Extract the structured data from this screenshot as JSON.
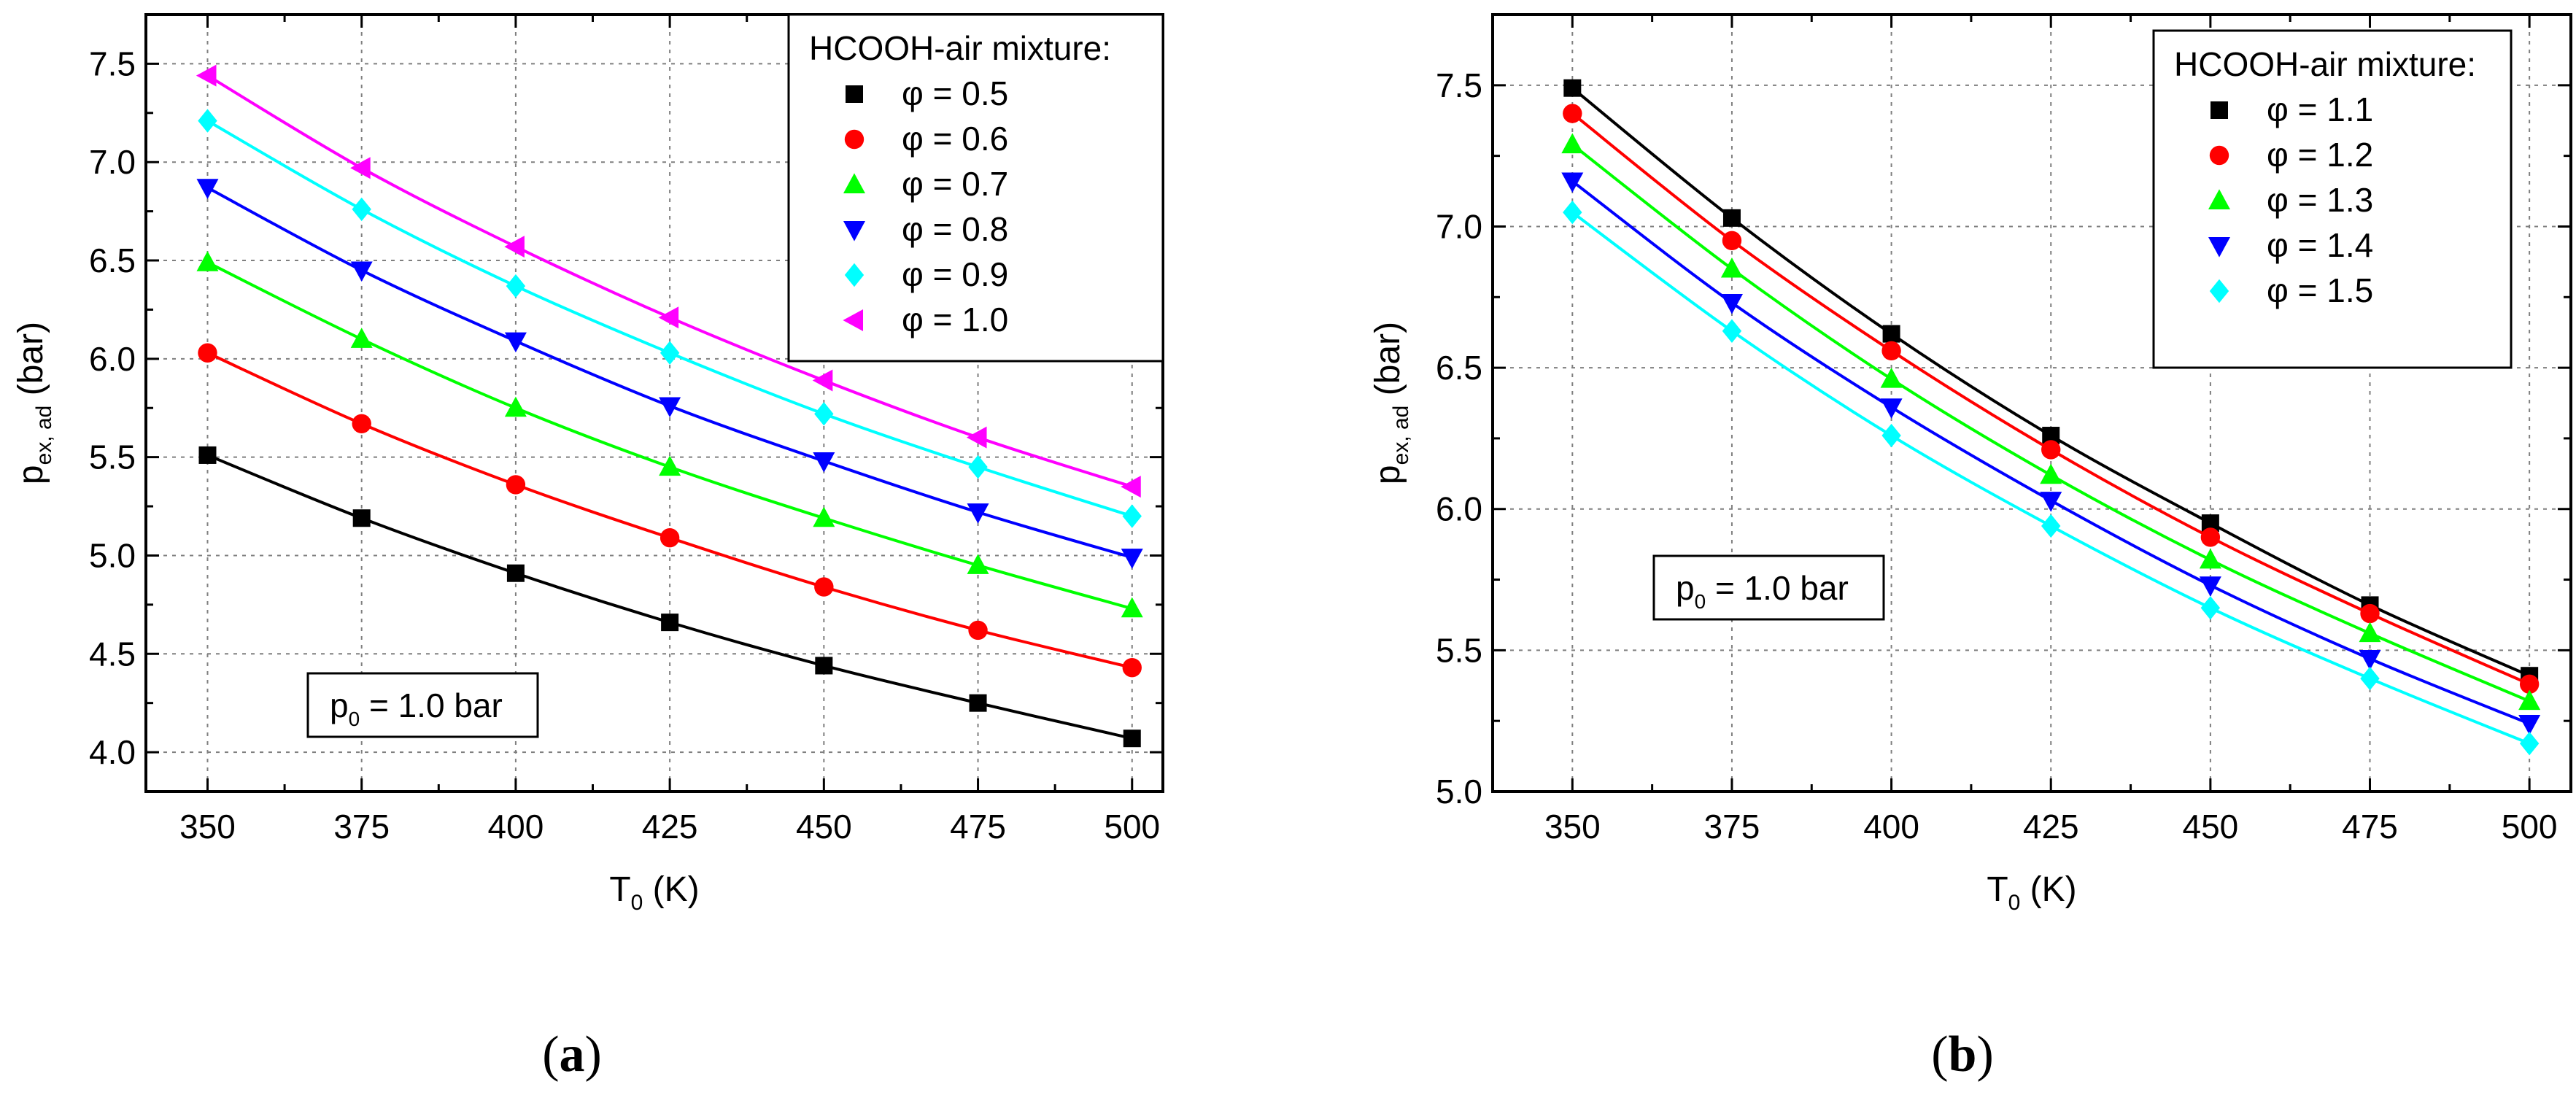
{
  "chart_data": [
    {
      "type": "line",
      "panel_label": "a",
      "xlabel": "T",
      "xlabel_sub": "0",
      "xlabel_unit": " (K)",
      "ylabel": "p",
      "ylabel_sub": "ex, ad",
      "ylabel_unit": " (bar)",
      "xlim": [
        340,
        505
      ],
      "ylim": [
        3.8,
        7.75
      ],
      "xticks": [
        350,
        375,
        400,
        425,
        450,
        475,
        500
      ],
      "xtick_labels": [
        "350",
        "375",
        "400",
        "425",
        "450",
        "475",
        "500"
      ],
      "yticks": [
        4.0,
        4.5,
        5.0,
        5.5,
        6.0,
        6.5,
        7.0,
        7.5
      ],
      "ytick_labels": [
        "4.0",
        "4.5",
        "5.0",
        "5.5",
        "6.0",
        "6.5",
        "7.0",
        "7.5"
      ],
      "grid": true,
      "legend_title": "HCOOH-air mixture:",
      "legend_position": "top-right",
      "annotation": "p",
      "annotation_sub": "0",
      "annotation_rest": " = 1.0 bar",
      "annotation_position": "lower-left",
      "x": [
        350,
        375,
        400,
        425,
        450,
        475,
        500
      ],
      "series": [
        {
          "name": "φ = 0.5",
          "color": "#000000",
          "marker": "square",
          "values": [
            5.51,
            5.19,
            4.91,
            4.66,
            4.44,
            4.25,
            4.07
          ]
        },
        {
          "name": "φ = 0.6",
          "color": "#ff0000",
          "marker": "circle",
          "values": [
            6.03,
            5.67,
            5.36,
            5.09,
            4.84,
            4.62,
            4.43
          ]
        },
        {
          "name": "φ = 0.7",
          "color": "#00ff00",
          "marker": "triangle-up",
          "values": [
            6.49,
            6.1,
            5.75,
            5.45,
            5.19,
            4.95,
            4.73
          ]
        },
        {
          "name": "φ = 0.8",
          "color": "#0000ff",
          "marker": "triangle-down",
          "values": [
            6.87,
            6.45,
            6.09,
            5.76,
            5.48,
            5.22,
            4.99
          ]
        },
        {
          "name": "φ = 0.9",
          "color": "#00ffff",
          "marker": "diamond",
          "values": [
            7.21,
            6.76,
            6.37,
            6.03,
            5.72,
            5.45,
            5.2
          ]
        },
        {
          "name": "φ = 1.0",
          "color": "#ff00ff",
          "marker": "triangle-left",
          "values": [
            7.44,
            6.97,
            6.57,
            6.21,
            5.89,
            5.6,
            5.35
          ]
        }
      ]
    },
    {
      "type": "line",
      "panel_label": "b",
      "xlabel": "T",
      "xlabel_sub": "0",
      "xlabel_unit": " (K)",
      "ylabel": "p",
      "ylabel_sub": "ex, ad",
      "ylabel_unit": " (bar)",
      "xlim": [
        337.5,
        506.5
      ],
      "ylim": [
        5.0,
        7.75
      ],
      "xticks": [
        350,
        375,
        400,
        425,
        450,
        475,
        500
      ],
      "xtick_labels": [
        "350",
        "375",
        "400",
        "425",
        "450",
        "475",
        "500"
      ],
      "yticks": [
        5.0,
        5.5,
        6.0,
        6.5,
        7.0,
        7.5
      ],
      "ytick_labels": [
        "5.0",
        "5.5",
        "6.0",
        "6.5",
        "7.0",
        "7.5"
      ],
      "grid": true,
      "legend_title": "HCOOH-air mixture:",
      "legend_position": "top-right",
      "annotation": "p",
      "annotation_sub": "0",
      "annotation_rest": " = 1.0 bar",
      "annotation_position": "center-left",
      "x": [
        350,
        375,
        400,
        425,
        450,
        475,
        500
      ],
      "series": [
        {
          "name": "φ = 1.1",
          "color": "#000000",
          "marker": "square",
          "values": [
            7.49,
            7.03,
            6.62,
            6.26,
            5.95,
            5.66,
            5.41
          ]
        },
        {
          "name": "φ = 1.2",
          "color": "#ff0000",
          "marker": "circle",
          "values": [
            7.4,
            6.95,
            6.56,
            6.21,
            5.9,
            5.63,
            5.38
          ]
        },
        {
          "name": "φ = 1.3",
          "color": "#00ff00",
          "marker": "triangle-up",
          "values": [
            7.29,
            6.85,
            6.46,
            6.12,
            5.82,
            5.56,
            5.32
          ]
        },
        {
          "name": "φ = 1.4",
          "color": "#0000ff",
          "marker": "triangle-down",
          "values": [
            7.16,
            6.73,
            6.36,
            6.03,
            5.73,
            5.47,
            5.24
          ]
        },
        {
          "name": "φ = 1.5",
          "color": "#00ffff",
          "marker": "diamond",
          "values": [
            7.05,
            6.63,
            6.26,
            5.94,
            5.65,
            5.4,
            5.17
          ]
        }
      ]
    }
  ]
}
